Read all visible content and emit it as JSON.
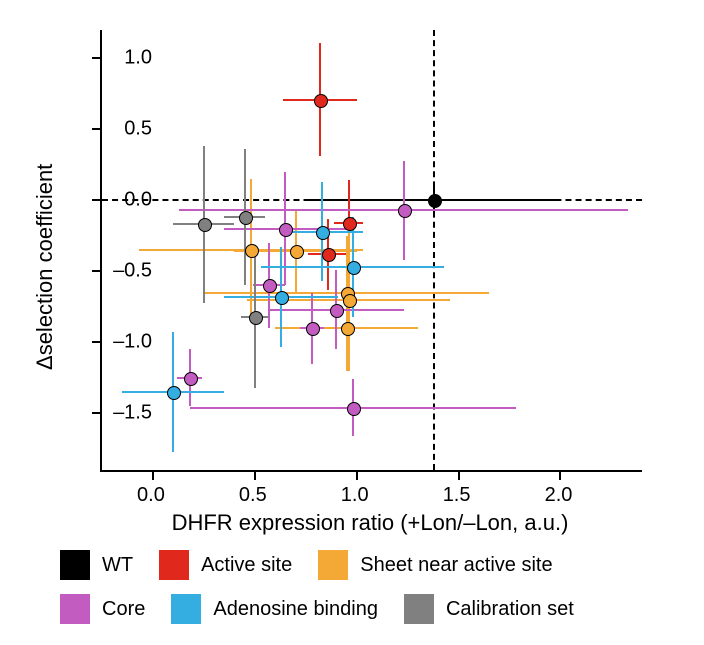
{
  "chart": {
    "type": "scatter",
    "background_color": "#ffffff",
    "axis_color": "#000000",
    "tick_fontsize": 20,
    "axis_title_fontsize": 22,
    "xlim": [
      -0.25,
      2.4
    ],
    "ylim": [
      -1.9,
      1.2
    ],
    "xticks": [
      0.0,
      0.5,
      1.0,
      1.5,
      2.0
    ],
    "yticks": [
      -1.5,
      -1.0,
      -0.5,
      0.0,
      0.5,
      1.0
    ],
    "xtick_labels": [
      "0.0",
      "0.5",
      "1.0",
      "1.5",
      "2.0"
    ],
    "ytick_labels": [
      "–1.5",
      "–1.0",
      "–0.5",
      "0.0",
      "0.5",
      "1.0"
    ],
    "xlabel": "DHFR expression ratio (+Lon/–Lon, a.u.)",
    "ylabel": "Δselection coefficient",
    "guide_dash_color": "#000000",
    "guide_dash_pattern": "6,6",
    "guide_x": 1.38,
    "guide_y": 0.0,
    "marker_radius": 6,
    "error_bar_width": 2,
    "series_colors": {
      "WT": "#000000",
      "Active site": "#e0281d",
      "Sheet near active site": "#f4a836",
      "Core": "#c35cc0",
      "Adenosine binding": "#34aee0",
      "Calibration set": "#808080"
    },
    "points": [
      {
        "x": 1.38,
        "y": 0.0,
        "ex": 0.62,
        "ey": 0.1,
        "group": "WT"
      },
      {
        "x": 0.82,
        "y": 0.71,
        "ex": 0.18,
        "ey": 0.4,
        "group": "Active site"
      },
      {
        "x": 0.96,
        "y": -0.16,
        "ex": 0.07,
        "ey": 0.3,
        "group": "Active site"
      },
      {
        "x": 0.86,
        "y": -0.38,
        "ex": 0.1,
        "ey": 0.25,
        "group": "Active site"
      },
      {
        "x": 0.48,
        "y": -0.35,
        "ex": 0.55,
        "ey": 0.5,
        "group": "Sheet near active site"
      },
      {
        "x": 0.7,
        "y": -0.36,
        "ex": 0.3,
        "ey": 0.3,
        "group": "Sheet near active site"
      },
      {
        "x": 0.95,
        "y": -0.65,
        "ex": 0.7,
        "ey": 0.4,
        "group": "Sheet near active site"
      },
      {
        "x": 0.96,
        "y": -0.7,
        "ex": 0.5,
        "ey": 0.5,
        "group": "Sheet near active site"
      },
      {
        "x": 0.95,
        "y": -0.9,
        "ex": 0.35,
        "ey": 0.3,
        "group": "Sheet near active site"
      },
      {
        "x": 0.65,
        "y": -0.2,
        "ex": 0.3,
        "ey": 0.4,
        "group": "Core"
      },
      {
        "x": 1.23,
        "y": -0.07,
        "ex": 1.1,
        "ey": 0.35,
        "group": "Core"
      },
      {
        "x": 0.57,
        "y": -0.6,
        "ex": 0.08,
        "ey": 0.3,
        "group": "Core"
      },
      {
        "x": 0.9,
        "y": -0.77,
        "ex": 0.33,
        "ey": 0.28,
        "group": "Core"
      },
      {
        "x": 0.78,
        "y": -0.9,
        "ex": 0.06,
        "ey": 0.25,
        "group": "Core"
      },
      {
        "x": 0.18,
        "y": -1.25,
        "ex": 0.06,
        "ey": 0.2,
        "group": "Core"
      },
      {
        "x": 0.98,
        "y": -1.46,
        "ex": 0.8,
        "ey": 0.2,
        "group": "Core"
      },
      {
        "x": 0.83,
        "y": -0.22,
        "ex": 0.2,
        "ey": 0.35,
        "group": "Adenosine binding"
      },
      {
        "x": 0.98,
        "y": -0.47,
        "ex": 0.45,
        "ey": 0.35,
        "group": "Adenosine binding"
      },
      {
        "x": 0.63,
        "y": -0.68,
        "ex": 0.28,
        "ey": 0.35,
        "group": "Adenosine binding"
      },
      {
        "x": 0.1,
        "y": -1.35,
        "ex": 0.25,
        "ey": 0.42,
        "group": "Adenosine binding"
      },
      {
        "x": 0.25,
        "y": -0.17,
        "ex": 0.15,
        "ey": 0.55,
        "group": "Calibration set"
      },
      {
        "x": 0.45,
        "y": -0.12,
        "ex": 0.1,
        "ey": 0.48,
        "group": "Calibration set"
      },
      {
        "x": 0.5,
        "y": -0.82,
        "ex": 0.07,
        "ey": 0.5,
        "group": "Calibration set"
      }
    ],
    "legend": {
      "fontsize": 20,
      "swatch_size": 30,
      "items": [
        {
          "label": "WT",
          "color": "#000000"
        },
        {
          "label": "Active site",
          "color": "#e0281d"
        },
        {
          "label": "Sheet near active site",
          "color": "#f4a836"
        },
        {
          "label": "Core",
          "color": "#c35cc0"
        },
        {
          "label": "Adenosine binding",
          "color": "#34aee0"
        },
        {
          "label": "Calibration set",
          "color": "#808080"
        }
      ]
    }
  }
}
